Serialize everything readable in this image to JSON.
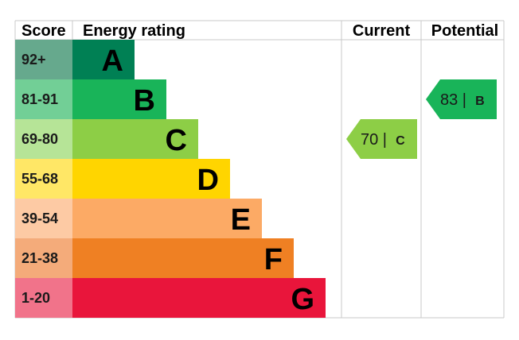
{
  "headers": {
    "score": "Score",
    "rating": "Energy rating",
    "current": "Current",
    "potential": "Potential"
  },
  "chart_data": {
    "type": "bar",
    "categories": [
      "A",
      "B",
      "C",
      "D",
      "E",
      "F",
      "G"
    ],
    "score_ranges": [
      "92+",
      "81-91",
      "69-80",
      "55-68",
      "39-54",
      "21-38",
      "1-20"
    ],
    "bar_colors": [
      "#008054",
      "#19b459",
      "#8dce46",
      "#ffd500",
      "#fcaa65",
      "#ef8023",
      "#e9153b"
    ],
    "score_colors": [
      "#66a98d",
      "#72cf96",
      "#b6e497",
      "#ffe766",
      "#fdcaa4",
      "#f4ab7a",
      "#f1738a"
    ],
    "current": {
      "value": 70,
      "rating": "C",
      "color": "#8dce46"
    },
    "potential": {
      "value": 83,
      "rating": "B",
      "color": "#19b459"
    }
  }
}
